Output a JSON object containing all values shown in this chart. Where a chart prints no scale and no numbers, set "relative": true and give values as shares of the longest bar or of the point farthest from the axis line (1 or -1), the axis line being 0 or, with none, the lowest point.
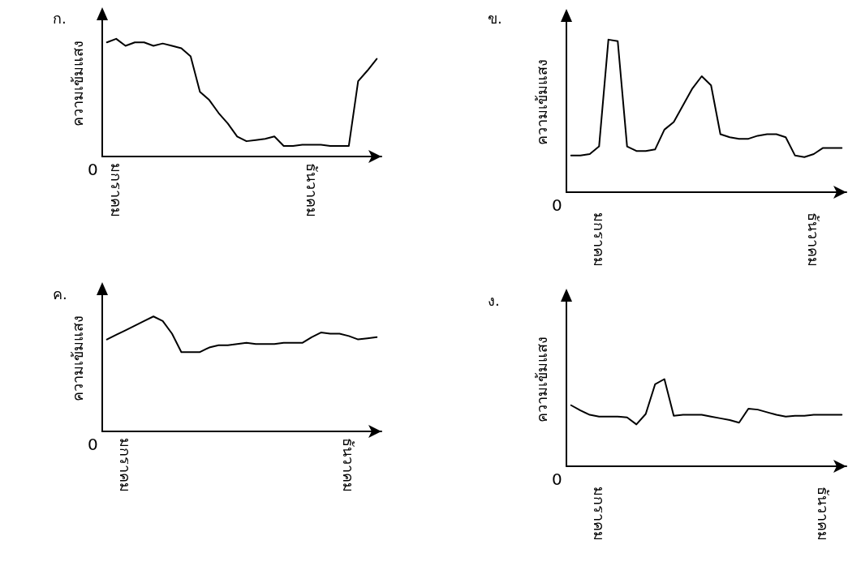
{
  "chart_data": [
    {
      "type": "line",
      "title": "ก.",
      "ylabel": "ความเข้มแสง",
      "relative": true,
      "color": "#000000",
      "marker": "none",
      "annotations": [
        "0"
      ],
      "categories": [
        null,
        "มกราคม",
        null,
        null,
        null,
        null,
        null,
        null,
        null,
        null,
        null,
        null,
        null,
        null,
        null,
        null,
        null,
        null,
        null,
        null,
        null,
        null,
        "ธันวาคม",
        null,
        null,
        null,
        null,
        null,
        null,
        null
      ],
      "values": [
        0.97,
        1,
        0.94,
        0.97,
        0.97,
        0.94,
        0.96,
        0.94,
        0.92,
        0.85,
        0.55,
        0.48,
        0.37,
        0.28,
        0.17,
        0.13,
        0.14,
        0.15,
        0.17,
        0.09,
        0.09,
        0.1,
        0.1,
        0.1,
        0.09,
        0.09,
        0.09,
        0.64,
        0.73,
        0.83
      ]
    },
    {
      "type": "line",
      "title": "ข.",
      "ylabel": "ความเข้มแสง",
      "relative": true,
      "color": "#000000",
      "marker": "none",
      "annotations": [
        "0"
      ],
      "categories": [
        null,
        null,
        null,
        "มกราคม",
        null,
        null,
        null,
        null,
        null,
        null,
        null,
        null,
        null,
        null,
        null,
        null,
        null,
        null,
        null,
        null,
        null,
        null,
        null,
        null,
        null,
        null,
        "ธันวาคม",
        null,
        null,
        null
      ],
      "values": [
        0.24,
        0.24,
        0.25,
        0.3,
        1,
        0.99,
        0.3,
        0.27,
        0.27,
        0.28,
        0.41,
        0.46,
        0.57,
        0.68,
        0.76,
        0.7,
        0.38,
        0.36,
        0.35,
        0.35,
        0.37,
        0.38,
        0.38,
        0.36,
        0.24,
        0.23,
        0.25,
        0.29,
        0.29,
        0.29
      ]
    },
    {
      "type": "line",
      "title": "ค.",
      "ylabel": "ความเข้มแสง",
      "relative": true,
      "color": "#000000",
      "marker": "none",
      "annotations": [
        "0"
      ],
      "categories": [
        null,
        null,
        "มกราคม",
        null,
        null,
        null,
        null,
        null,
        null,
        null,
        null,
        null,
        null,
        null,
        null,
        null,
        null,
        null,
        null,
        null,
        null,
        null,
        null,
        null,
        null,
        null,
        "ธันวาคม",
        null,
        null,
        null
      ],
      "values": [
        0.8,
        0.84,
        0.88,
        0.92,
        0.96,
        1,
        0.96,
        0.85,
        0.69,
        0.69,
        0.69,
        0.73,
        0.75,
        0.75,
        0.76,
        0.77,
        0.76,
        0.76,
        0.76,
        0.77,
        0.77,
        0.77,
        0.82,
        0.86,
        0.85,
        0.85,
        0.83,
        0.8,
        0.81,
        0.82
      ]
    },
    {
      "type": "line",
      "title": "ง.",
      "ylabel": "ความเข้มแสง",
      "relative": true,
      "color": "#000000",
      "marker": "none",
      "annotations": [
        "0"
      ],
      "categories": [
        null,
        null,
        null,
        "มกราคม",
        null,
        null,
        null,
        null,
        null,
        null,
        null,
        null,
        null,
        null,
        null,
        null,
        null,
        null,
        null,
        null,
        null,
        null,
        null,
        null,
        null,
        null,
        null,
        "ธันวาคม",
        null,
        null
      ],
      "values": [
        0.7,
        0.64,
        0.59,
        0.57,
        0.57,
        0.57,
        0.56,
        0.48,
        0.6,
        0.94,
        1,
        0.58,
        0.59,
        0.59,
        0.59,
        0.57,
        0.55,
        0.53,
        0.5,
        0.66,
        0.65,
        0.62,
        0.59,
        0.57,
        0.58,
        0.58,
        0.59,
        0.59,
        0.59,
        0.59
      ]
    }
  ]
}
